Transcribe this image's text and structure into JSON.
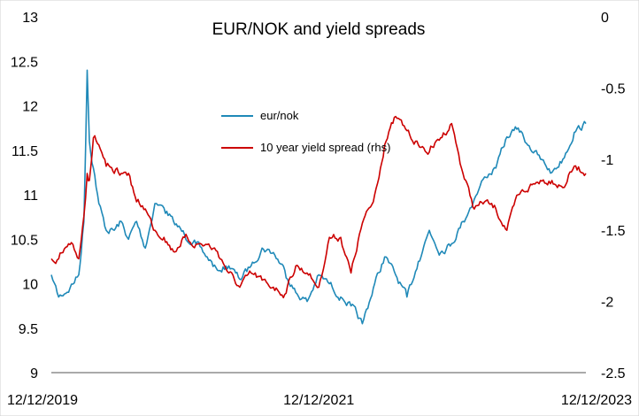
{
  "chart_data": {
    "type": "line",
    "title": "EUR/NOK and yield spreads",
    "x_range": [
      "12/12/2019",
      "12/12/2023"
    ],
    "x_ticks": [
      "12/12/2019",
      "12/12/2021",
      "12/12/2023"
    ],
    "y_left": {
      "min": 9,
      "max": 13,
      "ticks": [
        "13",
        "12.5",
        "12",
        "11.5",
        "11",
        "10.5",
        "10",
        "9.5",
        "9"
      ]
    },
    "y_right": {
      "min": -2.5,
      "max": 0,
      "ticks": [
        "0",
        "-0.5",
        "-1",
        "-1.5",
        "-2",
        "-2.5"
      ]
    },
    "grid": false,
    "legend": "center",
    "series": [
      {
        "name": "eur/nok",
        "axis": "left",
        "color": "#1f89b8",
        "x": [
          "2019-12-12",
          "2020-01-01",
          "2020-02-01",
          "2020-02-25",
          "2020-03-10",
          "2020-03-19",
          "2020-03-25",
          "2020-04-05",
          "2020-04-20",
          "2020-05-10",
          "2020-06-01",
          "2020-06-20",
          "2020-07-10",
          "2020-08-01",
          "2020-08-25",
          "2020-09-20",
          "2020-10-15",
          "2020-11-10",
          "2020-12-10",
          "2021-01-10",
          "2021-02-10",
          "2021-03-10",
          "2021-04-10",
          "2021-05-10",
          "2021-06-10",
          "2021-07-10",
          "2021-08-10",
          "2021-09-10",
          "2021-10-10",
          "2021-11-10",
          "2021-12-12",
          "2022-01-10",
          "2022-02-10",
          "2022-03-10",
          "2022-04-10",
          "2022-05-10",
          "2022-06-10",
          "2022-07-10",
          "2022-08-10",
          "2022-09-10",
          "2022-10-10",
          "2022-11-10",
          "2022-12-10",
          "2023-01-10",
          "2023-02-10",
          "2023-03-10",
          "2023-04-10",
          "2023-05-10",
          "2023-06-10",
          "2023-07-10",
          "2023-08-10",
          "2023-09-10",
          "2023-10-10",
          "2023-11-10",
          "2023-12-12"
        ],
        "y": [
          10.1,
          9.85,
          9.95,
          10.1,
          10.7,
          12.4,
          11.6,
          11.3,
          10.9,
          10.6,
          10.6,
          10.7,
          10.5,
          10.7,
          10.4,
          10.9,
          10.85,
          10.7,
          10.55,
          10.45,
          10.3,
          10.15,
          10.2,
          10.05,
          10.2,
          10.4,
          10.35,
          10.15,
          9.9,
          9.8,
          10.1,
          10.0,
          9.85,
          9.75,
          9.55,
          9.95,
          10.3,
          10.1,
          9.85,
          10.25,
          10.6,
          10.35,
          10.45,
          10.7,
          10.95,
          11.2,
          11.3,
          11.65,
          11.75,
          11.55,
          11.4,
          11.25,
          11.4,
          11.7,
          11.8
        ]
      },
      {
        "name": "10 year yield spread (rhs)",
        "axis": "right",
        "color": "#cc0000",
        "x": [
          "2019-12-12",
          "2020-01-01",
          "2020-02-01",
          "2020-02-25",
          "2020-03-10",
          "2020-03-19",
          "2020-03-25",
          "2020-04-05",
          "2020-04-20",
          "2020-05-10",
          "2020-06-01",
          "2020-06-20",
          "2020-07-10",
          "2020-08-01",
          "2020-08-25",
          "2020-09-20",
          "2020-10-15",
          "2020-11-10",
          "2020-12-10",
          "2021-01-10",
          "2021-02-10",
          "2021-03-10",
          "2021-04-10",
          "2021-05-10",
          "2021-06-10",
          "2021-07-10",
          "2021-08-10",
          "2021-09-10",
          "2021-10-10",
          "2021-11-10",
          "2021-12-12",
          "2022-01-10",
          "2022-02-10",
          "2022-03-10",
          "2022-04-10",
          "2022-05-10",
          "2022-06-10",
          "2022-07-10",
          "2022-08-10",
          "2022-09-10",
          "2022-10-10",
          "2022-11-10",
          "2022-12-10",
          "2023-01-10",
          "2023-02-10",
          "2023-03-10",
          "2023-04-10",
          "2023-05-10",
          "2023-06-10",
          "2023-07-10",
          "2023-08-10",
          "2023-09-10",
          "2023-10-10",
          "2023-11-10",
          "2023-12-12"
        ],
        "y": [
          -1.7,
          -1.7,
          -1.6,
          -1.7,
          -1.4,
          -1.1,
          -1.15,
          -0.85,
          -0.9,
          -1.05,
          -1.1,
          -1.1,
          -1.1,
          -1.3,
          -1.35,
          -1.5,
          -1.55,
          -1.65,
          -1.55,
          -1.6,
          -1.6,
          -1.65,
          -1.8,
          -1.9,
          -1.8,
          -1.85,
          -1.9,
          -1.95,
          -1.75,
          -1.8,
          -1.9,
          -1.55,
          -1.55,
          -1.8,
          -1.45,
          -1.3,
          -0.9,
          -0.7,
          -0.8,
          -0.9,
          -0.95,
          -0.85,
          -0.75,
          -1.1,
          -1.35,
          -1.3,
          -1.35,
          -1.5,
          -1.25,
          -1.2,
          -1.15,
          -1.15,
          -1.2,
          -1.05,
          -1.1
        ]
      }
    ]
  }
}
